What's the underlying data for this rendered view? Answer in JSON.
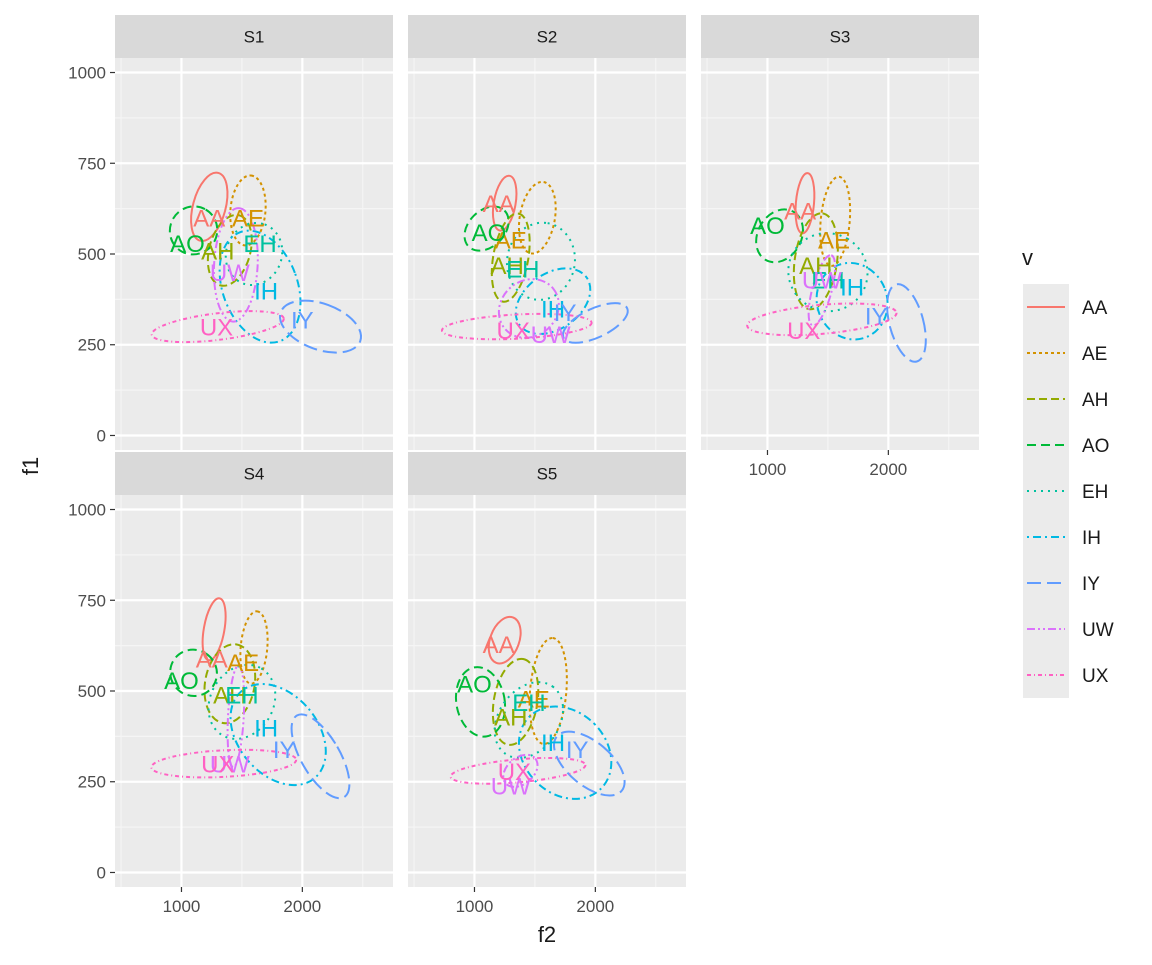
{
  "chart_data": {
    "type": "scatter",
    "subtype": "faceted vowel ellipses with centroid labels",
    "xlabel": "f2",
    "ylabel": "f1",
    "xlim": [
      450,
      2750
    ],
    "ylim": [
      -40,
      1040
    ],
    "x_ticks": [
      1000,
      2000
    ],
    "y_ticks": [
      0,
      250,
      500,
      750,
      1000
    ],
    "grid": true,
    "legend": {
      "title": "v",
      "position": "right",
      "entries": [
        "AA",
        "AE",
        "AH",
        "AO",
        "EH",
        "IH",
        "IY",
        "UW",
        "UX"
      ]
    },
    "colors": {
      "AA": "#F8766D",
      "AE": "#D39200",
      "AH": "#93AA00",
      "AO": "#00BA38",
      "EH": "#00C19F",
      "IH": "#00B9E3",
      "IY": "#619CFF",
      "UW": "#DB72FB",
      "UX": "#FF61C3"
    },
    "panels": [
      {
        "strip": "S1",
        "ellipses": [
          {
            "v": "AA",
            "cx": 1230,
            "cy": 630,
            "rx": 290,
            "ry": 135,
            "rot": -75
          },
          {
            "v": "AE",
            "cx": 1550,
            "cy": 620,
            "rx": 290,
            "ry": 145,
            "rot": -85
          },
          {
            "v": "AH",
            "cx": 1400,
            "cy": 510,
            "rx": 300,
            "ry": 170,
            "rot": -75
          },
          {
            "v": "AO",
            "cx": 1100,
            "cy": 565,
            "rx": 200,
            "ry": 195,
            "rot": -60
          },
          {
            "v": "EH",
            "cx": 1600,
            "cy": 500,
            "rx": 260,
            "ry": 230,
            "rot": -70
          },
          {
            "v": "IH",
            "cx": 1650,
            "cy": 410,
            "rx": 310,
            "ry": 480,
            "rot": -20
          },
          {
            "v": "IY",
            "cx": 2150,
            "cy": 300,
            "rx": 190,
            "ry": 350,
            "rot": -70
          },
          {
            "v": "UW",
            "cx": 1450,
            "cy": 470,
            "rx": 470,
            "ry": 180,
            "rot": -87
          },
          {
            "v": "UX",
            "cx": 1300,
            "cy": 300,
            "rx": 550,
            "ry": 110,
            "rot": -7
          }
        ],
        "labels": [
          {
            "v": "AA",
            "x": 1230,
            "y": 600
          },
          {
            "v": "AE",
            "x": 1550,
            "y": 600
          },
          {
            "v": "AH",
            "x": 1300,
            "y": 510
          },
          {
            "v": "AO",
            "x": 1050,
            "y": 530
          },
          {
            "v": "EH",
            "x": 1650,
            "y": 530
          },
          {
            "v": "IH",
            "x": 1700,
            "y": 400
          },
          {
            "v": "IY",
            "x": 2000,
            "y": 320
          },
          {
            "v": "UW",
            "x": 1400,
            "y": 450
          },
          {
            "v": "UX",
            "x": 1290,
            "y": 300
          }
        ]
      },
      {
        "strip": "S2",
        "ellipses": [
          {
            "v": "AA",
            "cx": 1250,
            "cy": 640,
            "rx": 230,
            "ry": 90,
            "rot": -80
          },
          {
            "v": "AE",
            "cx": 1520,
            "cy": 600,
            "rx": 300,
            "ry": 145,
            "rot": -80
          },
          {
            "v": "AH",
            "cx": 1300,
            "cy": 490,
            "rx": 370,
            "ry": 145,
            "rot": -80
          },
          {
            "v": "AO",
            "cx": 1100,
            "cy": 570,
            "rx": 210,
            "ry": 150,
            "rot": -45
          },
          {
            "v": "EH",
            "cx": 1550,
            "cy": 480,
            "rx": 320,
            "ry": 280,
            "rot": -80
          },
          {
            "v": "IH",
            "cx": 1650,
            "cy": 370,
            "rx": 340,
            "ry": 230,
            "rot": -35
          },
          {
            "v": "IY",
            "cx": 2000,
            "cy": 310,
            "rx": 290,
            "ry": 120,
            "rot": -25
          },
          {
            "v": "UW",
            "cx": 1450,
            "cy": 350,
            "rx": 260,
            "ry": 230,
            "rot": -40
          },
          {
            "v": "UX",
            "cx": 1350,
            "cy": 300,
            "rx": 620,
            "ry": 100,
            "rot": -3
          }
        ],
        "labels": [
          {
            "v": "AA",
            "x": 1200,
            "y": 640
          },
          {
            "v": "AE",
            "x": 1300,
            "y": 540
          },
          {
            "v": "AH",
            "x": 1270,
            "y": 470
          },
          {
            "v": "AO",
            "x": 1120,
            "y": 560
          },
          {
            "v": "EH",
            "x": 1400,
            "y": 460
          },
          {
            "v": "IH",
            "x": 1650,
            "y": 350
          },
          {
            "v": "IY",
            "x": 1750,
            "y": 340
          },
          {
            "v": "UW",
            "x": 1630,
            "y": 280
          },
          {
            "v": "UX",
            "x": 1320,
            "y": 290
          }
        ]
      },
      {
        "strip": "S3",
        "ellipses": [
          {
            "v": "AA",
            "cx": 1310,
            "cy": 640,
            "rx": 250,
            "ry": 75,
            "rot": -85
          },
          {
            "v": "AE",
            "cx": 1560,
            "cy": 590,
            "rx": 370,
            "ry": 120,
            "rot": -85
          },
          {
            "v": "AH",
            "cx": 1400,
            "cy": 480,
            "rx": 400,
            "ry": 175,
            "rot": -82
          },
          {
            "v": "AO",
            "cx": 1100,
            "cy": 550,
            "rx": 230,
            "ry": 180,
            "rot": -60
          },
          {
            "v": "EH",
            "cx": 1500,
            "cy": 450,
            "rx": 320,
            "ry": 330,
            "rot": -60
          },
          {
            "v": "IH",
            "cx": 1700,
            "cy": 370,
            "rx": 290,
            "ry": 320,
            "rot": -20
          },
          {
            "v": "IY",
            "cx": 2150,
            "cy": 310,
            "rx": 140,
            "ry": 330,
            "rot": -15
          },
          {
            "v": "UW",
            "cx": 1450,
            "cy": 400,
            "rx": 300,
            "ry": 80,
            "rot": -75
          },
          {
            "v": "UX",
            "cx": 1450,
            "cy": 320,
            "rx": 620,
            "ry": 120,
            "rot": -5
          }
        ],
        "labels": [
          {
            "v": "AA",
            "x": 1270,
            "y": 620
          },
          {
            "v": "AE",
            "x": 1550,
            "y": 540
          },
          {
            "v": "AH",
            "x": 1400,
            "y": 470
          },
          {
            "v": "AO",
            "x": 1000,
            "y": 580
          },
          {
            "v": "EH",
            "x": 1500,
            "y": 430
          },
          {
            "v": "IH",
            "x": 1700,
            "y": 410
          },
          {
            "v": "IY",
            "x": 1900,
            "y": 330
          },
          {
            "v": "UW",
            "x": 1450,
            "y": 430
          },
          {
            "v": "UX",
            "x": 1300,
            "y": 290
          }
        ]
      },
      {
        "strip": "S4",
        "ellipses": [
          {
            "v": "AA",
            "cx": 1270,
            "cy": 670,
            "rx": 260,
            "ry": 85,
            "rot": -80
          },
          {
            "v": "AE",
            "cx": 1600,
            "cy": 620,
            "rx": 300,
            "ry": 110,
            "rot": -85
          },
          {
            "v": "AH",
            "cx": 1400,
            "cy": 520,
            "rx": 330,
            "ry": 205,
            "rot": -80
          },
          {
            "v": "AO",
            "cx": 1100,
            "cy": 550,
            "rx": 190,
            "ry": 195,
            "rot": -55
          },
          {
            "v": "EH",
            "cx": 1500,
            "cy": 470,
            "rx": 320,
            "ry": 260,
            "rot": -60
          },
          {
            "v": "IH",
            "cx": 1800,
            "cy": 380,
            "rx": 330,
            "ry": 470,
            "rot": -40
          },
          {
            "v": "IY",
            "cx": 2150,
            "cy": 320,
            "rx": 160,
            "ry": 390,
            "rot": -30
          },
          {
            "v": "UW",
            "cx": 1450,
            "cy": 430,
            "rx": 420,
            "ry": 65,
            "rot": -87
          },
          {
            "v": "UX",
            "cx": 1350,
            "cy": 300,
            "rx": 600,
            "ry": 110,
            "rot": -3
          }
        ],
        "labels": [
          {
            "v": "AA",
            "x": 1250,
            "y": 590
          },
          {
            "v": "AE",
            "x": 1510,
            "y": 580
          },
          {
            "v": "AH",
            "x": 1400,
            "y": 490
          },
          {
            "v": "AO",
            "x": 1000,
            "y": 530
          },
          {
            "v": "EH",
            "x": 1500,
            "y": 490
          },
          {
            "v": "IH",
            "x": 1700,
            "y": 400
          },
          {
            "v": "IY",
            "x": 1850,
            "y": 340
          },
          {
            "v": "UW",
            "x": 1400,
            "y": 300
          },
          {
            "v": "UX",
            "x": 1300,
            "y": 300
          }
        ]
      },
      {
        "strip": "S5",
        "ellipses": [
          {
            "v": "AA",
            "cx": 1250,
            "cy": 640,
            "rx": 200,
            "ry": 120,
            "rot": -70
          },
          {
            "v": "AE",
            "cx": 1610,
            "cy": 500,
            "rx": 440,
            "ry": 150,
            "rot": -85
          },
          {
            "v": "AH",
            "cx": 1340,
            "cy": 470,
            "rx": 360,
            "ry": 180,
            "rot": -80
          },
          {
            "v": "AO",
            "cx": 1050,
            "cy": 470,
            "rx": 200,
            "ry": 290,
            "rot": -10
          },
          {
            "v": "EH",
            "cx": 1450,
            "cy": 420,
            "rx": 340,
            "ry": 250,
            "rot": -55
          },
          {
            "v": "IH",
            "cx": 1750,
            "cy": 330,
            "rx": 340,
            "ry": 420,
            "rot": -45
          },
          {
            "v": "IY",
            "cx": 1950,
            "cy": 300,
            "rx": 180,
            "ry": 350,
            "rot": -50
          },
          {
            "v": "UW",
            "cx": 1380,
            "cy": 280,
            "rx": 160,
            "ry": 110,
            "rot": -40
          },
          {
            "v": "UX",
            "cx": 1360,
            "cy": 280,
            "rx": 560,
            "ry": 95,
            "rot": -5
          }
        ],
        "labels": [
          {
            "v": "AA",
            "x": 1200,
            "y": 630
          },
          {
            "v": "AE",
            "x": 1490,
            "y": 480
          },
          {
            "v": "AH",
            "x": 1300,
            "y": 430
          },
          {
            "v": "AO",
            "x": 1000,
            "y": 520
          },
          {
            "v": "EH",
            "x": 1450,
            "y": 470
          },
          {
            "v": "IH",
            "x": 1650,
            "y": 360
          },
          {
            "v": "IY",
            "x": 1850,
            "y": 340
          },
          {
            "v": "UW",
            "x": 1300,
            "y": 240
          },
          {
            "v": "UX",
            "x": 1330,
            "y": 280
          }
        ]
      }
    ]
  }
}
